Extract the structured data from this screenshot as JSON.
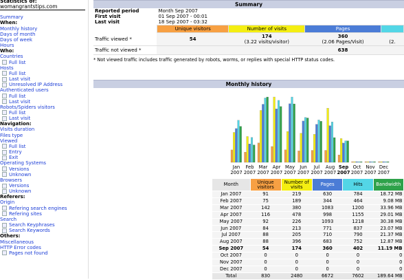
{
  "nav": {
    "stats_title": "Statistics of:",
    "host": "womangrantstips.com",
    "items": [
      {
        "type": "link",
        "label": "Summary"
      },
      {
        "type": "section",
        "label": "When:"
      },
      {
        "type": "link",
        "label": "Monthly history"
      },
      {
        "type": "link",
        "label": "Days of month"
      },
      {
        "type": "link",
        "label": "Days of week"
      },
      {
        "type": "link",
        "label": "Hours"
      },
      {
        "type": "section",
        "label": "Who:"
      },
      {
        "type": "link",
        "label": "Countries"
      },
      {
        "type": "sub",
        "label": "Full list"
      },
      {
        "type": "link",
        "label": "Hosts"
      },
      {
        "type": "sub",
        "label": "Full list"
      },
      {
        "type": "sub",
        "label": "Last visit"
      },
      {
        "type": "sub",
        "label": "Unresolved IP Address"
      },
      {
        "type": "link",
        "label": "Authenticated users"
      },
      {
        "type": "sub",
        "label": "Full list"
      },
      {
        "type": "sub",
        "label": "Last visit"
      },
      {
        "type": "link",
        "label": "Robots/Spiders visitors"
      },
      {
        "type": "sub",
        "label": "Full list"
      },
      {
        "type": "sub",
        "label": "Last visit"
      },
      {
        "type": "section",
        "label": "Navigation:"
      },
      {
        "type": "link",
        "label": "Visits duration"
      },
      {
        "type": "link",
        "label": "Files type"
      },
      {
        "type": "link",
        "label": "Viewed"
      },
      {
        "type": "sub",
        "label": "Full list"
      },
      {
        "type": "sub",
        "label": "Entry"
      },
      {
        "type": "sub",
        "label": "Exit"
      },
      {
        "type": "link",
        "label": "Operating Systems"
      },
      {
        "type": "sub",
        "label": "Versions"
      },
      {
        "type": "sub",
        "label": "Unknown"
      },
      {
        "type": "link",
        "label": "Browsers"
      },
      {
        "type": "sub",
        "label": "Versions"
      },
      {
        "type": "sub",
        "label": "Unknown"
      },
      {
        "type": "section",
        "label": "Referers:"
      },
      {
        "type": "link",
        "label": "Origin"
      },
      {
        "type": "sub",
        "label": "Refering search engines"
      },
      {
        "type": "sub",
        "label": "Refering sites"
      },
      {
        "type": "link",
        "label": "Search"
      },
      {
        "type": "sub",
        "label": "Search Keyphrases"
      },
      {
        "type": "sub",
        "label": "Search Keywords"
      },
      {
        "type": "section",
        "label": "Others:"
      },
      {
        "type": "link",
        "label": "Miscellaneous"
      },
      {
        "type": "link",
        "label": "HTTP Error codes"
      },
      {
        "type": "sub",
        "label": "Pages not found"
      }
    ]
  },
  "summary": {
    "title": "Summary",
    "reported_period_label": "Reported period",
    "reported_period_value": "Month Sep 2007",
    "first_visit_label": "First visit",
    "first_visit_value": "01 Sep 2007 - 00:01",
    "last_visit_label": "Last visit",
    "last_visit_value": "18 Sep 2007 - 03:32",
    "col_unique": "Unique visitors",
    "col_visits": "Number of visits",
    "col_pages": "Pages",
    "traffic_viewed_label": "Traffic viewed *",
    "traffic_viewed_unique": "54",
    "traffic_viewed_visits": "174",
    "traffic_viewed_visits_sub": "(3.22 visits/visitor)",
    "traffic_viewed_pages": "360",
    "traffic_viewed_pages_sub": "(2.06 Pages/Visit)",
    "traffic_viewed_hits_sub": "(2.",
    "traffic_not_viewed_label": "Traffic not viewed *",
    "traffic_not_viewed_pages": "638",
    "note": "* Not viewed traffic includes traffic generated by robots, worms, or replies with special HTTP status codes."
  },
  "history": {
    "title": "Monthly history",
    "col_month": "Month",
    "col_unique": "Unique visitors",
    "col_visits": "Number of visits",
    "col_pages": "Pages",
    "col_hits": "Hits",
    "col_bandwidth": "Bandwidth",
    "current_month": "Sep 2007",
    "rows": [
      {
        "month": "Jan 2007",
        "unique": "91",
        "visits": "219",
        "pages": "630",
        "hits": "784",
        "bandwidth": "18.72 MB"
      },
      {
        "month": "Feb 2007",
        "unique": "75",
        "visits": "189",
        "pages": "344",
        "hits": "464",
        "bandwidth": "9.08 MB"
      },
      {
        "month": "Mar 2007",
        "unique": "142",
        "visits": "380",
        "pages": "1083",
        "hits": "1200",
        "bandwidth": "33.96 MB"
      },
      {
        "month": "Apr 2007",
        "unique": "116",
        "visits": "478",
        "pages": "998",
        "hits": "1155",
        "bandwidth": "29.01 MB"
      },
      {
        "month": "May 2007",
        "unique": "92",
        "visits": "226",
        "pages": "1093",
        "hits": "1218",
        "bandwidth": "30.38 MB"
      },
      {
        "month": "Jun 2007",
        "unique": "84",
        "visits": "213",
        "pages": "771",
        "hits": "837",
        "bandwidth": "23.07 MB"
      },
      {
        "month": "Jul 2007",
        "unique": "88",
        "visits": "205",
        "pages": "710",
        "hits": "790",
        "bandwidth": "21.37 MB"
      },
      {
        "month": "Aug 2007",
        "unique": "88",
        "visits": "396",
        "pages": "683",
        "hits": "752",
        "bandwidth": "12.87 MB"
      },
      {
        "month": "Sep 2007",
        "unique": "54",
        "visits": "174",
        "pages": "360",
        "hits": "402",
        "bandwidth": "11.19 MB"
      },
      {
        "month": "Oct 2007",
        "unique": "0",
        "visits": "0",
        "pages": "0",
        "hits": "0",
        "bandwidth": "0"
      },
      {
        "month": "Nov 2007",
        "unique": "0",
        "visits": "0",
        "pages": "0",
        "hits": "0",
        "bandwidth": "0"
      },
      {
        "month": "Dec 2007",
        "unique": "0",
        "visits": "0",
        "pages": "0",
        "hits": "0",
        "bandwidth": "0"
      }
    ],
    "total": {
      "label": "Total",
      "unique": "830",
      "visits": "2480",
      "pages": "6672",
      "hits": "7602",
      "bandwidth": "189.64 MB"
    }
  },
  "colors": {
    "unique": "#f7a043",
    "visits": "#f4ee12",
    "pages": "#4b7cd6",
    "hits": "#53d6e6",
    "bandwidth": "#2ea24a",
    "section_header": "#c9cfe2",
    "link": "#1a3cd6"
  },
  "chart_data": {
    "type": "bar",
    "categories": [
      "Jan 2007",
      "Feb 2007",
      "Mar 2007",
      "Apr 2007",
      "May 2007",
      "Jun 2007",
      "Jul 2007",
      "Aug 2007",
      "Sep 2007",
      "Oct 2007",
      "Nov 2007",
      "Dec 2007"
    ],
    "tick_labels": [
      [
        "Jan",
        "2007"
      ],
      [
        "Feb",
        "2007"
      ],
      [
        "Mar",
        "2007"
      ],
      [
        "Apr",
        "2007"
      ],
      [
        "May",
        "2007"
      ],
      [
        "Jun",
        "2007"
      ],
      [
        "Jul",
        "2007"
      ],
      [
        "Aug",
        "2007"
      ],
      [
        "Sep",
        "2007"
      ],
      [
        "Oct",
        "2007"
      ],
      [
        "Nov",
        "2007"
      ],
      [
        "Dec",
        "2007"
      ]
    ],
    "series": [
      {
        "name": "Unique visitors",
        "values": [
          91,
          75,
          142,
          116,
          92,
          84,
          88,
          88,
          54,
          0,
          0,
          0
        ]
      },
      {
        "name": "Number of visits",
        "values": [
          219,
          189,
          380,
          478,
          226,
          213,
          205,
          396,
          174,
          0,
          0,
          0
        ]
      },
      {
        "name": "Pages",
        "values": [
          630,
          344,
          1083,
          998,
          1093,
          771,
          710,
          683,
          360,
          0,
          0,
          0
        ]
      },
      {
        "name": "Hits",
        "values": [
          784,
          464,
          1200,
          1155,
          1218,
          837,
          790,
          752,
          402,
          0,
          0,
          0
        ]
      },
      {
        "name": "Bandwidth",
        "unit": "MB",
        "values": [
          18.72,
          9.08,
          33.96,
          29.01,
          30.38,
          23.07,
          21.37,
          12.87,
          11.19,
          0,
          0,
          0
        ]
      }
    ],
    "xlabel": "",
    "ylabel": "",
    "grid": false,
    "legend": "none"
  }
}
